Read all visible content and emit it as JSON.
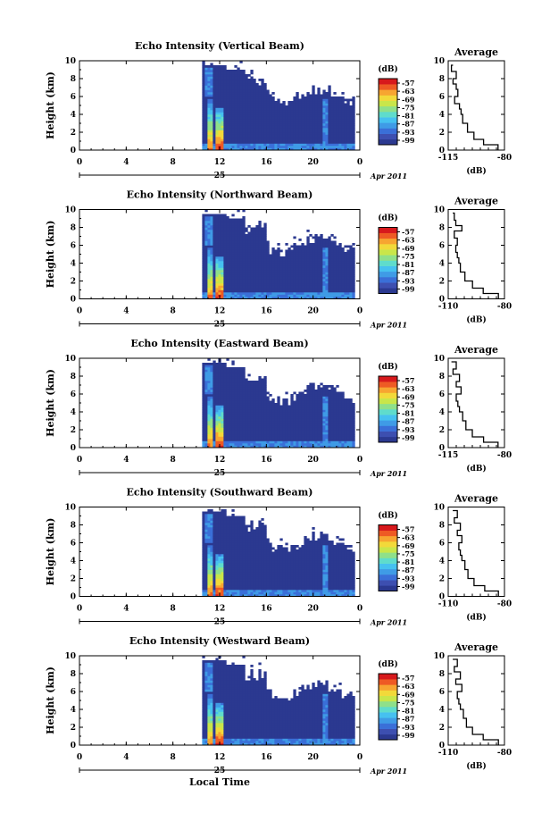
{
  "colors": {
    "scale": [
      "#2b3990",
      "#3d4fb0",
      "#3a6fd8",
      "#3f9be6",
      "#46c1f0",
      "#5fdccc",
      "#8fe08a",
      "#c9e64a",
      "#f2d93a",
      "#f7a531",
      "#ee5a24",
      "#d7191c"
    ],
    "background_fill": "#2e3a8c",
    "line": "#000000"
  },
  "xlabel_bottom": "Local Time",
  "colorbar": {
    "unit": "(dB)",
    "ticks": [
      "-57",
      "-63",
      "-69",
      "-75",
      "-81",
      "-87",
      "-93",
      "-99"
    ]
  },
  "profile_titles": "Average",
  "profile_xlabel": "(dB)",
  "chart_data": [
    {
      "type": "heatmap",
      "title": "Echo Intensity (Vertical Beam)",
      "ylabel": "Height (km)",
      "ylim": [
        0,
        10
      ],
      "yticks": [
        "0",
        "2",
        "4",
        "6",
        "8",
        "10"
      ],
      "xlim": [
        0,
        24
      ],
      "xticks": [
        "0",
        "4",
        "8",
        "12",
        "16",
        "20",
        "0"
      ],
      "date_day": "25",
      "date_label": "Apr 2011",
      "coverage_start_hour": 10.5,
      "profile": {
        "type": "line",
        "title": "Average",
        "xticks": [
          "-115",
          "-80"
        ],
        "xlim": [
          -115,
          -80
        ],
        "yticks": [
          "0",
          "2",
          "4",
          "6",
          "8",
          "10"
        ],
        "x": [
          -84,
          -93,
          -99,
          -103,
          -106,
          -107,
          -108,
          -111,
          -109,
          -110,
          -112,
          -110,
          -113,
          -112
        ],
        "y": [
          0,
          0.6,
          1.2,
          2,
          3,
          4,
          4.6,
          5.2,
          6,
          6.8,
          7.4,
          8,
          8.8,
          9.5
        ]
      }
    },
    {
      "type": "heatmap",
      "title": "Echo Intensity (Northward Beam)",
      "ylabel": "Height (km)",
      "ylim": [
        0,
        10
      ],
      "yticks": [
        "0",
        "2",
        "4",
        "6",
        "8",
        "10"
      ],
      "xlim": [
        0,
        24
      ],
      "xticks": [
        "0",
        "4",
        "8",
        "12",
        "16",
        "20",
        "0"
      ],
      "date_day": "25",
      "date_label": "Apr 2011",
      "coverage_start_hour": 10.5,
      "profile": {
        "type": "line",
        "title": "Average",
        "xticks": [
          "-110",
          "-80"
        ],
        "xlim": [
          -115,
          -78
        ],
        "yticks": [
          "0",
          "2",
          "4",
          "6",
          "8",
          "10"
        ],
        "x": [
          -82,
          -92,
          -99,
          -104,
          -107,
          -108,
          -109,
          -110,
          -109,
          -111,
          -106,
          -110,
          -111,
          -112
        ],
        "y": [
          0,
          0.6,
          1.2,
          2,
          3,
          4,
          4.6,
          5.2,
          6,
          6.8,
          7.6,
          8.2,
          8.8,
          9.6
        ]
      }
    },
    {
      "type": "heatmap",
      "title": "Echo Intensity (Eastward Beam)",
      "ylabel": "Height (km)",
      "ylim": [
        0,
        10
      ],
      "yticks": [
        "0",
        "2",
        "4",
        "6",
        "8",
        "10"
      ],
      "xlim": [
        0,
        24
      ],
      "xticks": [
        "0",
        "4",
        "8",
        "12",
        "16",
        "20",
        "0"
      ],
      "date_day": "25",
      "date_label": "Apr 2011",
      "coverage_start_hour": 10.5,
      "profile": {
        "type": "line",
        "title": "Average",
        "xticks": [
          "-115",
          "-80"
        ],
        "xlim": [
          -115,
          -80
        ],
        "yticks": [
          "0",
          "2",
          "4",
          "6",
          "8",
          "10"
        ],
        "x": [
          -84,
          -93,
          -100,
          -104,
          -106,
          -108,
          -109,
          -110,
          -107,
          -110,
          -108,
          -112,
          -110,
          -113
        ],
        "y": [
          0,
          0.6,
          1.2,
          2,
          3,
          4,
          4.6,
          5.2,
          6,
          6.8,
          7.4,
          8.2,
          8.8,
          9.6
        ]
      }
    },
    {
      "type": "heatmap",
      "title": "Echo Intensity (Southward Beam)",
      "ylabel": "Height (km)",
      "ylim": [
        0,
        10
      ],
      "yticks": [
        "0",
        "2",
        "4",
        "6",
        "8",
        "10"
      ],
      "xlim": [
        0,
        24
      ],
      "xticks": [
        "0",
        "4",
        "8",
        "12",
        "16",
        "20",
        "0"
      ],
      "date_day": "25",
      "date_label": "Apr 2011",
      "coverage_start_hour": 10.5,
      "profile": {
        "type": "line",
        "title": "Average",
        "xticks": [
          "-110",
          "-80"
        ],
        "xlim": [
          -115,
          -78
        ],
        "yticks": [
          "0",
          "2",
          "4",
          "6",
          "8",
          "10"
        ],
        "x": [
          -82,
          -91,
          -98,
          -102,
          -104,
          -106,
          -107,
          -108,
          -106,
          -109,
          -107,
          -111,
          -109,
          -112
        ],
        "y": [
          0,
          0.6,
          1.2,
          2,
          3,
          4,
          4.6,
          5.2,
          6,
          6.8,
          7.4,
          8.2,
          8.8,
          9.6
        ]
      }
    },
    {
      "type": "heatmap",
      "title": "Echo Intensity (Westward Beam)",
      "ylabel": "Height (km)",
      "ylim": [
        0,
        10
      ],
      "yticks": [
        "0",
        "2",
        "4",
        "6",
        "8",
        "10"
      ],
      "xlim": [
        0,
        24
      ],
      "xticks": [
        "0",
        "4",
        "8",
        "12",
        "16",
        "20",
        "0"
      ],
      "date_day": "25",
      "date_label": "Apr 2011",
      "coverage_start_hour": 10.5,
      "profile": {
        "type": "line",
        "title": "Average",
        "xticks": [
          "-110",
          "-80"
        ],
        "xlim": [
          -115,
          -78
        ],
        "yticks": [
          "0",
          "2",
          "4",
          "6",
          "8",
          "10"
        ],
        "x": [
          -82,
          -92,
          -99,
          -103,
          -105,
          -107,
          -108,
          -109,
          -106,
          -110,
          -107,
          -111,
          -109,
          -112
        ],
        "y": [
          0,
          0.6,
          1.2,
          2,
          3,
          4,
          4.6,
          5.2,
          6,
          6.8,
          7.4,
          8.2,
          8.8,
          9.6
        ]
      }
    }
  ]
}
